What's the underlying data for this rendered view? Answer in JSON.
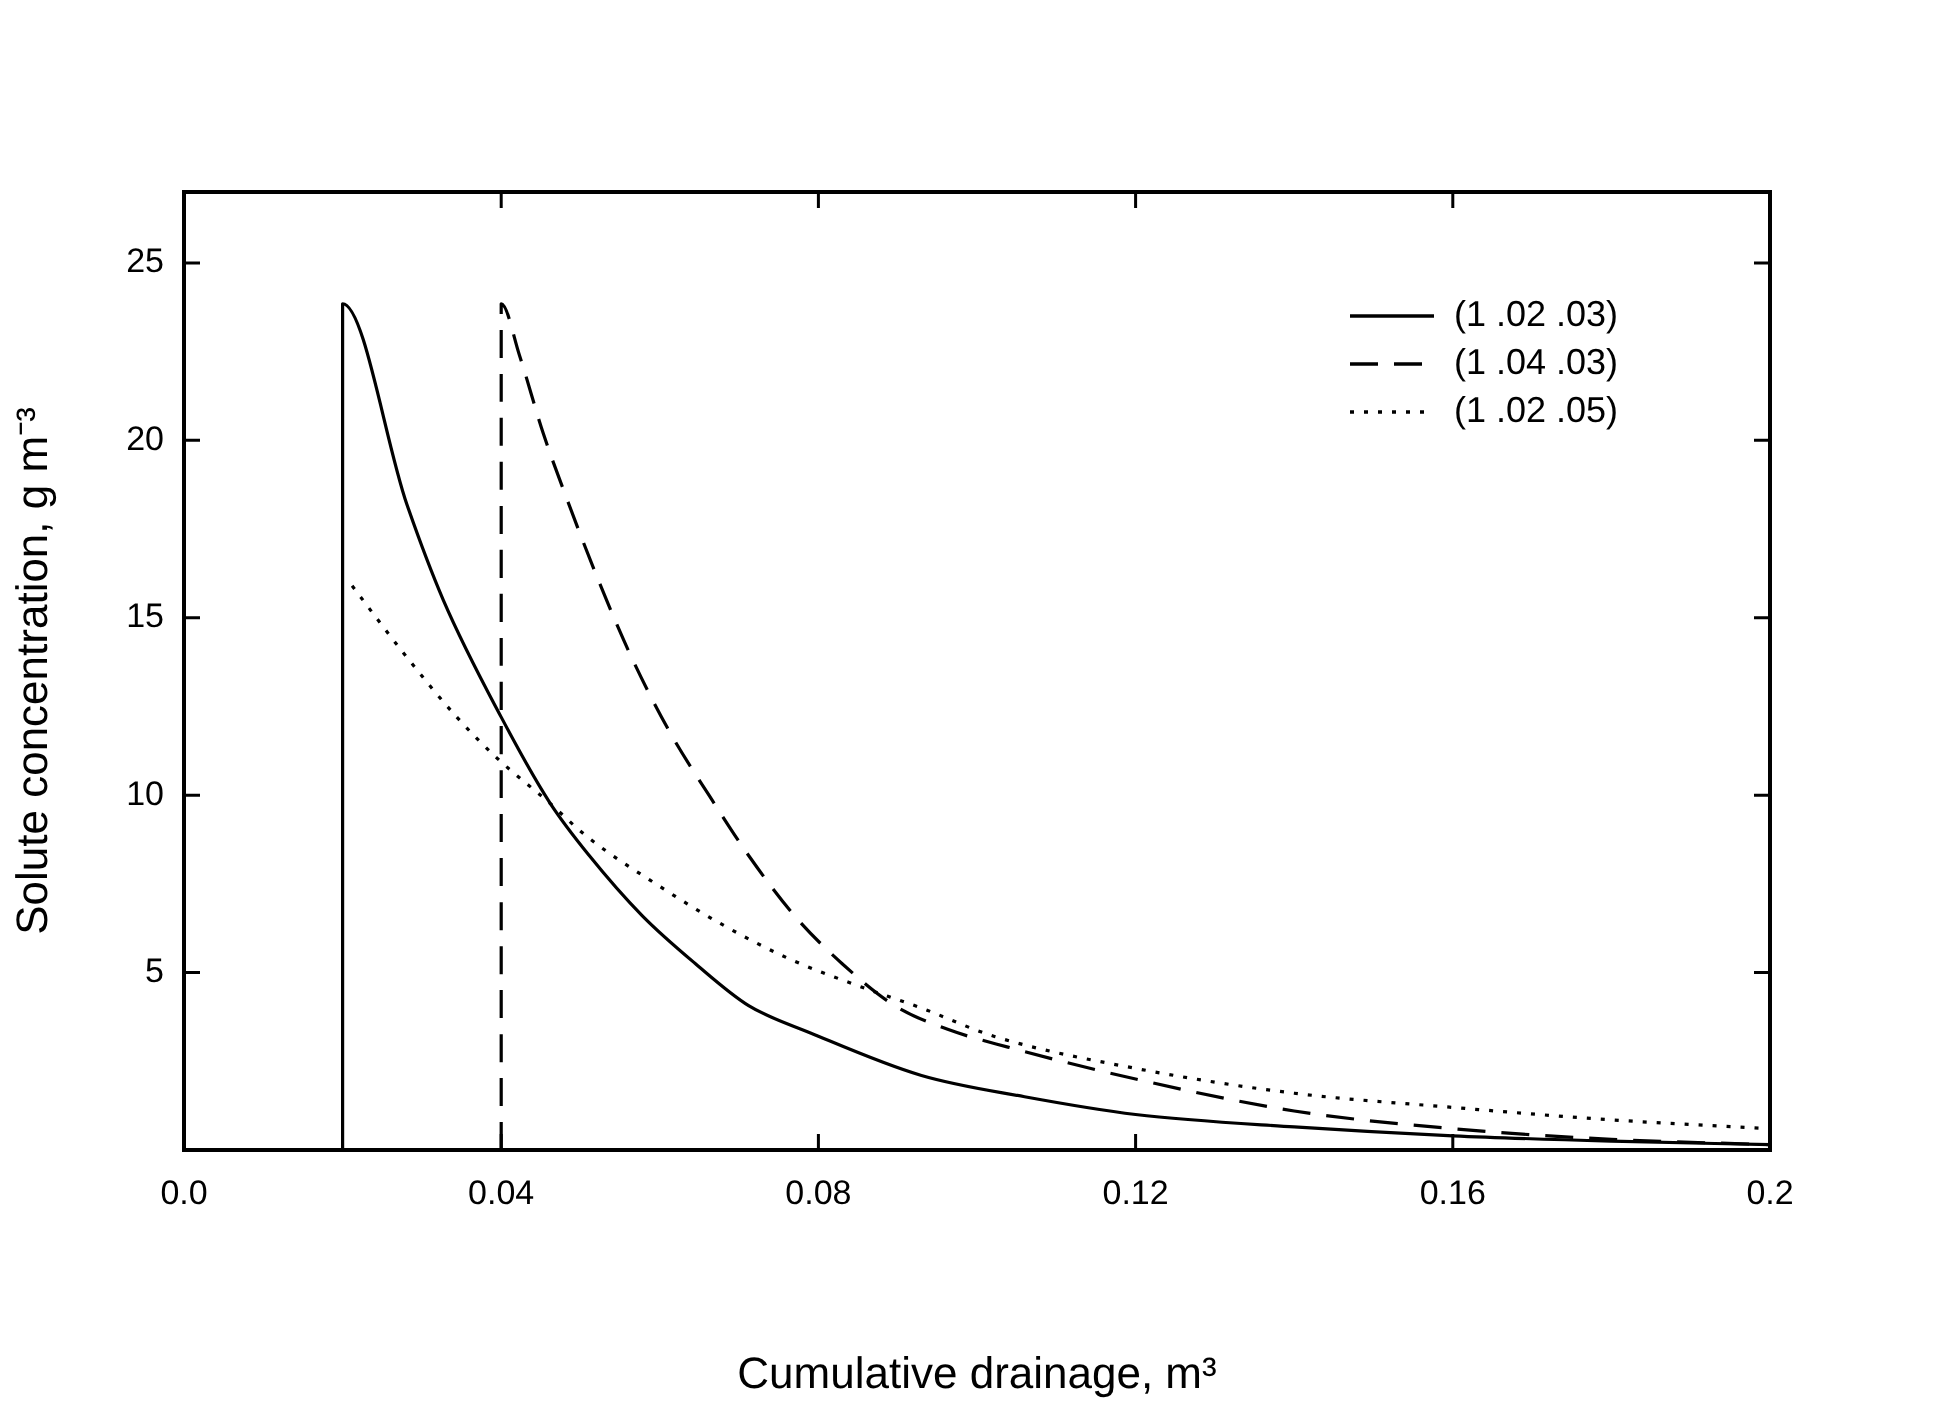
{
  "chart_data": {
    "type": "line",
    "xlabel": "Cumulative drainage, m³",
    "ylabel": "Solute concentration, g m⁻³",
    "xlim": [
      0,
      0.2
    ],
    "ylim": [
      0,
      27
    ],
    "xticks": [
      {
        "value": 0,
        "label": "0.0"
      },
      0.04,
      0.08,
      0.12,
      0.16,
      {
        "value": 0.2,
        "label": "0.2"
      }
    ],
    "yticks": [
      5,
      10,
      15,
      20,
      25
    ],
    "grid": false,
    "legend": "top right",
    "marker": "none",
    "series": [
      {
        "name": "(1 .02 .03)",
        "color": "#000000",
        "line_style": "solid",
        "x": [
          0.02,
          0.02,
          0.0281,
          0.0327,
          0.04,
          0.0461,
          0.0511,
          0.0578,
          0.0645,
          0.0712,
          0.079,
          0.093,
          0.106,
          0.12,
          0.14,
          0.16,
          0.18,
          0.2
        ],
        "values": [
          0,
          23.85,
          18.2,
          15.5,
          12.2,
          9.8,
          8.3,
          6.6,
          5.25,
          4.07,
          3.3,
          2.1,
          1.5,
          1.0,
          0.65,
          0.4,
          0.25,
          0.15
        ]
      },
      {
        "name": "(1 .04 .03)",
        "color": "#000000",
        "line_style": "dashed",
        "x": [
          0.04,
          0.04,
          0.0423,
          0.0453,
          0.0482,
          0.052,
          0.0562,
          0.0612,
          0.0662,
          0.0712,
          0.077,
          0.083,
          0.0896,
          0.0963,
          0.1039,
          0.12,
          0.14,
          0.16,
          0.18,
          0.2
        ],
        "values": [
          0,
          23.85,
          22.4,
          20.2,
          18.4,
          16.2,
          14.0,
          11.8,
          10.0,
          8.3,
          6.6,
          5.25,
          4.07,
          3.4,
          2.9,
          2.0,
          1.1,
          0.6,
          0.3,
          0.15
        ]
      },
      {
        "name": "(1 .02 .05)",
        "color": "#000000",
        "line_style": "dotted",
        "x": [
          0.0212,
          0.0277,
          0.0344,
          0.0394,
          0.046,
          0.051,
          0.0595,
          0.0679,
          0.0762,
          0.0846,
          0.093,
          0.1022,
          0.12,
          0.14,
          0.16,
          0.18,
          0.2
        ],
        "values": [
          15.9,
          14.0,
          12.2,
          11.06,
          9.8,
          8.8,
          7.5,
          6.35,
          5.4,
          4.66,
          4.0,
          3.2,
          2.3,
          1.6,
          1.2,
          0.85,
          0.6
        ]
      }
    ]
  }
}
